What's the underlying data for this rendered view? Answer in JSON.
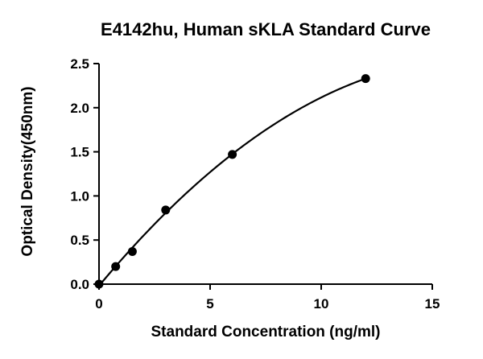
{
  "chart_data": {
    "type": "scatter",
    "title": "E4142hu, Human sKLA Standard Curve",
    "xlabel": "Standard Concentration (ng/ml)",
    "ylabel": "Optical Density(450nm)",
    "xlim": [
      0,
      15
    ],
    "ylim": [
      0,
      2.5
    ],
    "x_ticks": [
      0,
      5,
      10,
      15
    ],
    "x_tick_labels": [
      "0",
      "5",
      "10",
      "15"
    ],
    "y_ticks": [
      0,
      0.5,
      1.0,
      1.5,
      2.0,
      2.5
    ],
    "y_tick_labels": [
      "0.0",
      "0.5",
      "1.0",
      "1.5",
      "2.0",
      "2.5"
    ],
    "grid": false,
    "legend": "none",
    "series": [
      {
        "x": [
          0,
          0.75,
          1.5,
          3,
          6,
          12
        ],
        "y": [
          0.0,
          0.2,
          0.37,
          0.84,
          1.47,
          2.33
        ]
      }
    ],
    "fit_curve": true
  }
}
